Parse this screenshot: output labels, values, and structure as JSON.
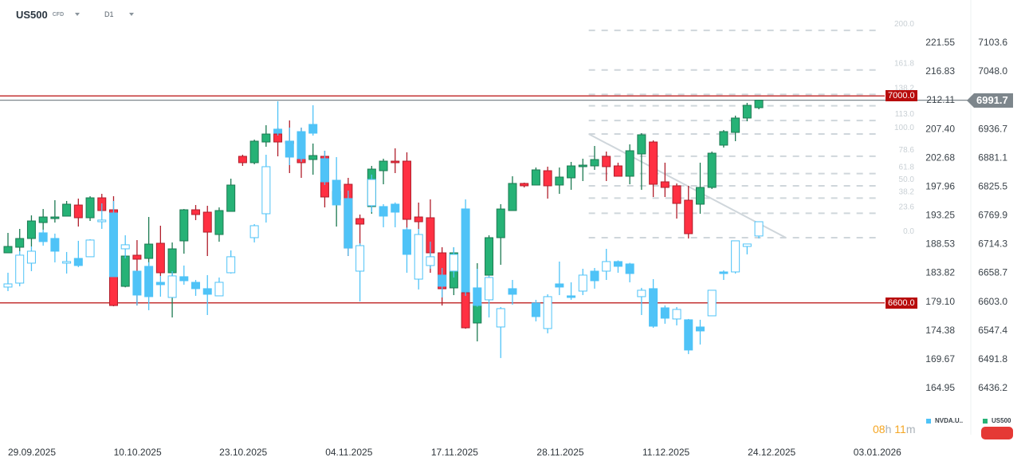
{
  "header": {
    "symbol": "US500",
    "symbol_type": "CFD",
    "timeframe": "D1"
  },
  "colors": {
    "up": "#26b276",
    "up_border": "#1c7a52",
    "down": "#ff3042",
    "down_border": "#b01e2b",
    "compare": "#4fc3f7",
    "level_red": "#b80c0c",
    "current_price": "#7d868c",
    "fib": "#cfd6db"
  },
  "price_lines": {
    "upper": "7000.0",
    "lower": "6600.0",
    "current": "6991.7"
  },
  "timer": {
    "hours": "08",
    "h": "h",
    "minutes": "11",
    "m": "m"
  },
  "legend": {
    "compare_symbol": "NVDA.U..",
    "main_symbol": "US500"
  },
  "chart_data": {
    "type": "candlestick",
    "x_labels": [
      "29.09.2025",
      "10.10.2025",
      "23.10.2025",
      "04.11.2025",
      "17.11.2025",
      "28.11.2025",
      "11.12.2025",
      "24.12.2025",
      "03.01.2026"
    ],
    "left_axis_ticks": [
      "221.55",
      "216.83",
      "212.11",
      "207.40",
      "202.68",
      "197.96",
      "193.25",
      "188.53",
      "183.82",
      "179.10",
      "174.38",
      "169.67",
      "164.95"
    ],
    "right_axis_ticks": [
      "7103.6",
      "7048.0",
      "",
      "6936.7",
      "6881.1",
      "6825.5",
      "6769.9",
      "6714.3",
      "6658.7",
      "6603.0",
      "6547.4",
      "6491.8",
      "6436.2"
    ],
    "right_range": [
      6436.2,
      7103.6
    ],
    "left_range": [
      164.95,
      221.55
    ],
    "fibonacci": {
      "price_0": 6726.0,
      "price_100": 6926.3,
      "levels": [
        200.0,
        161.8,
        138.2,
        127.2,
        113.0,
        100.0,
        78.6,
        61.8,
        50.0,
        38.2,
        23.6,
        0.0
      ],
      "labels": [
        "200.0",
        "161.8",
        "138.2",
        "",
        "113.0",
        "100.0",
        "78.6",
        "61.8",
        "50.0",
        "38.2",
        "23.6",
        "0.0"
      ],
      "start_bar": 49.5,
      "end_bar": 74.3
    },
    "trendline": {
      "start": [
        49.5,
        6926.3
      ],
      "end": [
        66.3,
        6726.0
      ]
    },
    "series": [
      {
        "name": "US500",
        "axis": "right",
        "ohlc": [
          [
            6696.7,
            6735.2,
            6696.7,
            6709.0
          ],
          [
            6707.5,
            6742.9,
            6699.8,
            6724.4
          ],
          [
            6724.4,
            6769.1,
            6709.0,
            6758.3
          ],
          [
            6755.2,
            6781.4,
            6741.4,
            6766.0
          ],
          [
            6762.9,
            6798.4,
            6755.2,
            6766.0
          ],
          [
            6767.6,
            6796.9,
            6767.6,
            6790.7
          ],
          [
            6789.1,
            6801.5,
            6747.5,
            6764.5
          ],
          [
            6764.5,
            6806.1,
            6758.3,
            6803.0
          ],
          [
            6803.0,
            6810.7,
            6778.4,
            6778.4
          ],
          [
            6779.9,
            6806.1,
            6593.4,
            6594.9
          ],
          [
            6631.9,
            6692.1,
            6630.0,
            6690.5
          ],
          [
            6692.1,
            6721.3,
            6594.9,
            6684.4
          ],
          [
            6685.9,
            6766.0,
            6672.0,
            6713.6
          ],
          [
            6715.2,
            6749.1,
            6652.0,
            6658.2
          ],
          [
            6658.2,
            6716.7,
            6571.8,
            6704.4
          ],
          [
            6719.8,
            6781.4,
            6695.1,
            6779.9
          ],
          [
            6779.9,
            6789.1,
            6759.9,
            6770.7
          ],
          [
            6775.3,
            6787.6,
            6690.5,
            6736.7
          ],
          [
            6732.1,
            6784.5,
            6718.2,
            6778.4
          ],
          [
            6776.8,
            6840.0,
            6776.8,
            6827.7
          ],
          [
            6883.2,
            6886.3,
            6864.7,
            6870.9
          ],
          [
            6870.9,
            6915.5,
            6867.8,
            6912.5
          ],
          [
            6910.9,
            6943.3,
            6901.7,
            6926.3
          ],
          [
            6926.3,
            6938.7,
            6883.2,
            6910.9
          ],
          [
            6912.5,
            6952.5,
            6850.8,
            6907.9
          ],
          [
            6878.6,
            6938.7,
            6841.6,
            6870.9
          ],
          [
            6877.0,
            6907.9,
            6847.7,
            6884.7
          ],
          [
            6883.2,
            6894.0,
            6784.5,
            6804.6
          ],
          [
            6800.0,
            6815.4,
            6747.5,
            6815.4
          ],
          [
            6829.2,
            6841.6,
            6690.5,
            6705.9
          ],
          [
            6762.9,
            6770.7,
            6710.5,
            6752.2
          ],
          [
            6786.1,
            6864.7,
            6772.2,
            6858.5
          ],
          [
            6855.4,
            6878.6,
            6829.2,
            6873.9
          ],
          [
            6873.9,
            6898.6,
            6850.8,
            6870.9
          ],
          [
            6873.9,
            6890.9,
            6744.5,
            6761.4
          ],
          [
            6766.0,
            6793.8,
            6742.9,
            6756.8
          ],
          [
            6764.5,
            6800.0,
            6658.2,
            6696.7
          ],
          [
            6696.7,
            6707.5,
            6594.9,
            6627.3
          ],
          [
            6628.9,
            6707.5,
            6615.0,
            6696.7
          ],
          [
            6619.6,
            6621.0,
            6550.0,
            6551.8
          ],
          [
            6561.1,
            6676.7,
            6525.6,
            6596.5
          ],
          [
            6653.5,
            6730.6,
            6653.5,
            6726.0
          ],
          [
            6726.0,
            6790.7,
            6673.6,
            6781.4
          ],
          [
            6778.4,
            6844.7,
            6778.4,
            6830.8
          ],
          [
            6830.8,
            6832.3,
            6823.1,
            6826.2
          ],
          [
            6827.7,
            6861.6,
            6827.7,
            6857.0
          ],
          [
            6855.4,
            6863.2,
            6801.5,
            6826.2
          ],
          [
            6827.7,
            6861.6,
            6810.7,
            6843.1
          ],
          [
            6841.6,
            6872.4,
            6818.5,
            6864.7
          ],
          [
            6863.2,
            6878.6,
            6835.4,
            6866.2
          ],
          [
            6864.7,
            6903.2,
            6857.0,
            6877.0
          ],
          [
            6883.2,
            6892.4,
            6835.4,
            6863.2
          ],
          [
            6864.7,
            6870.9,
            6844.7,
            6844.7
          ],
          [
            6844.7,
            6906.3,
            6829.2,
            6894.0
          ],
          [
            6887.8,
            6927.9,
            6818.5,
            6924.8
          ],
          [
            6910.9,
            6914.0,
            6804.6,
            6829.2
          ],
          [
            6833.9,
            6870.9,
            6804.6,
            6823.1
          ],
          [
            6826.2,
            6830.8,
            6762.9,
            6792.2
          ],
          [
            6798.4,
            6826.2,
            6724.4,
            6733.7
          ],
          [
            6790.7,
            6870.9,
            6772.2,
            6823.1
          ],
          [
            6823.1,
            6892.4,
            6820.0,
            6889.3
          ],
          [
            6904.8,
            6934.0,
            6900.1,
            6931.0
          ],
          [
            6929.4,
            6961.8,
            6912.5,
            6957.2
          ],
          [
            6957.2,
            6986.5,
            6951.0,
            6981.8
          ],
          [
            6977.2,
            6992.6,
            6974.1,
            6991.7
          ]
        ]
      },
      {
        "name": "NVDA.US",
        "axis": "left",
        "ohlc": [
          [
            181.43,
            183.78,
            180.77,
            181.95
          ],
          [
            182.08,
            187.31,
            181.56,
            186.66
          ],
          [
            185.35,
            188.09,
            184.04,
            187.31
          ],
          [
            190.32,
            190.84,
            188.22,
            188.88
          ],
          [
            189.4,
            190.19,
            185.48,
            187.31
          ],
          [
            185.35,
            187.18,
            183.65,
            185.61
          ],
          [
            186.13,
            189.01,
            184.7,
            184.96
          ],
          [
            186.4,
            189.27,
            186.4,
            189.14
          ],
          [
            192.14,
            195.15,
            190.97,
            192.41
          ],
          [
            193.58,
            195.54,
            183.13,
            183.13
          ],
          [
            187.7,
            189.92,
            186.13,
            188.36
          ],
          [
            184.04,
            184.04,
            178.42,
            180.12
          ],
          [
            184.83,
            185.5,
            177.64,
            179.86
          ],
          [
            182.21,
            183.26,
            179.86,
            181.82
          ],
          [
            179.73,
            184.04,
            179.73,
            183.26
          ],
          [
            183.13,
            184.96,
            181.82,
            182.47
          ],
          [
            182.21,
            182.6,
            179.99,
            181.17
          ],
          [
            181.17,
            183.39,
            176.85,
            180.25
          ],
          [
            179.99,
            183.0,
            179.99,
            182.21
          ],
          [
            183.78,
            187.44,
            183.65,
            186.4
          ],
          null,
          [
            189.53,
            191.75,
            188.75,
            191.49
          ],
          [
            193.45,
            203.12,
            192.01,
            201.16
          ],
          [
            207.31,
            211.88,
            206.26,
            206.65
          ],
          [
            205.35,
            207.57,
            201.42,
            202.73
          ],
          [
            206.91,
            207.57,
            201.95,
            202.47
          ],
          [
            208.09,
            211.23,
            206.26,
            206.65
          ],
          [
            202.47,
            203.78,
            198.16,
            198.68
          ],
          [
            198.94,
            202.73,
            194.89,
            194.89
          ],
          [
            195.94,
            197.24,
            186.53,
            187.83
          ],
          [
            184.04,
            188.6,
            179.07,
            188.22
          ],
          [
            194.76,
            199.86,
            193.71,
            199.07
          ],
          [
            194.63,
            195.02,
            191.23,
            193.06
          ],
          [
            195.02,
            195.3,
            191.23,
            193.71
          ],
          [
            190.84,
            191.2,
            183.78,
            186.79
          ],
          [
            182.73,
            190.97,
            181.04,
            190.05
          ],
          [
            184.96,
            188.88,
            184.43,
            186.4
          ],
          [
            183.39,
            184.56,
            179.73,
            181.56
          ],
          [
            184.04,
            187.96,
            183.0,
            186.79
          ],
          [
            194.24,
            195.8,
            179.99,
            180.64
          ],
          [
            181.3,
            184.43,
            178.2,
            178.42
          ],
          [
            179.34,
            183.3,
            176.46,
            183.0
          ],
          [
            174.89,
            178.16,
            169.8,
            177.9
          ],
          [
            181.17,
            182.6,
            178.55,
            180.25
          ],
          null,
          [
            178.81,
            179.34,
            175.81,
            176.59
          ],
          [
            174.63,
            180.25,
            173.85,
            179.86
          ],
          [
            181.95,
            185.61,
            180.12,
            181.43
          ],
          [
            179.99,
            182.21,
            179.34,
            179.73
          ],
          [
            180.77,
            184.43,
            180.12,
            183.39
          ],
          [
            184.04,
            184.56,
            181.17,
            182.47
          ],
          [
            184.04,
            187.7,
            182.6,
            185.61
          ],
          [
            185.61,
            185.8,
            183.78,
            184.83
          ],
          [
            185.22,
            185.4,
            182.21,
            183.65
          ],
          [
            179.86,
            181.3,
            176.85,
            180.91
          ],
          [
            181.17,
            182.73,
            174.76,
            175.02
          ],
          [
            178.03,
            178.42,
            175.42,
            176.33
          ],
          [
            176.2,
            178.16,
            175.15,
            177.77
          ],
          [
            176.07,
            176.2,
            170.45,
            171.11
          ],
          [
            174.89,
            176.07,
            172.02,
            174.24
          ],
          [
            176.72,
            180.91,
            176.72,
            180.91
          ],
          [
            183.91,
            184.17,
            182.6,
            183.65
          ],
          [
            183.91,
            189.01,
            183.65,
            189.01
          ],
          [
            188.09,
            188.49,
            186.79,
            188.49
          ],
          [
            189.8,
            192.14,
            189.4,
            192.14
          ]
        ]
      }
    ]
  }
}
